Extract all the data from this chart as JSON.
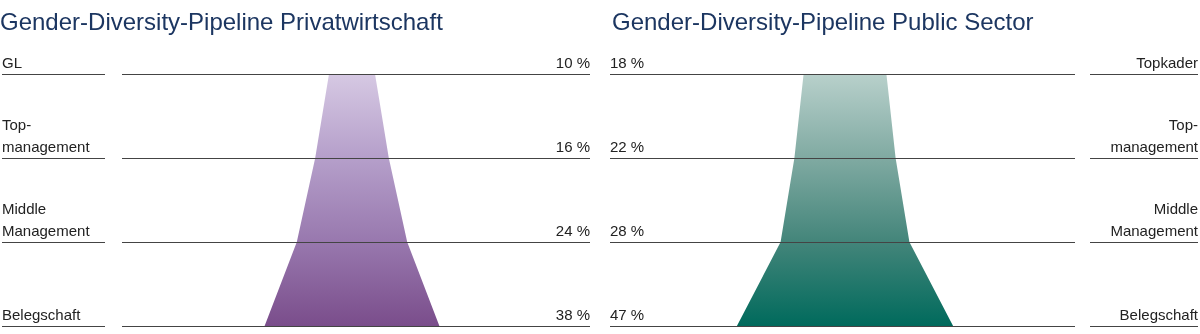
{
  "chart_data": [
    {
      "type": "other",
      "title": "Gender-Diversity-Pipeline Privatwirtschaft",
      "categories": [
        "GL",
        "Top-management",
        "Middle Management",
        "Belegschaft"
      ],
      "values": [
        10,
        16,
        24,
        38
      ],
      "value_labels": [
        "10 %",
        "16 %",
        "24 %",
        "38 %"
      ],
      "colors": [
        "#d6c9e3",
        "#b59fca",
        "#9878ae",
        "#7a4d8b"
      ]
    },
    {
      "type": "other",
      "title": "Gender-Diversity-Pipeline Public Sector",
      "categories": [
        "Topkader",
        "Top-management",
        "Middle Management",
        "Belegschaft"
      ],
      "values": [
        18,
        22,
        28,
        47
      ],
      "value_labels": [
        "18 %",
        "22 %",
        "28 %",
        "47 %"
      ],
      "colors": [
        "#b8d0cb",
        "#80aaa2",
        "#43857a",
        "#006a5c"
      ]
    }
  ]
}
